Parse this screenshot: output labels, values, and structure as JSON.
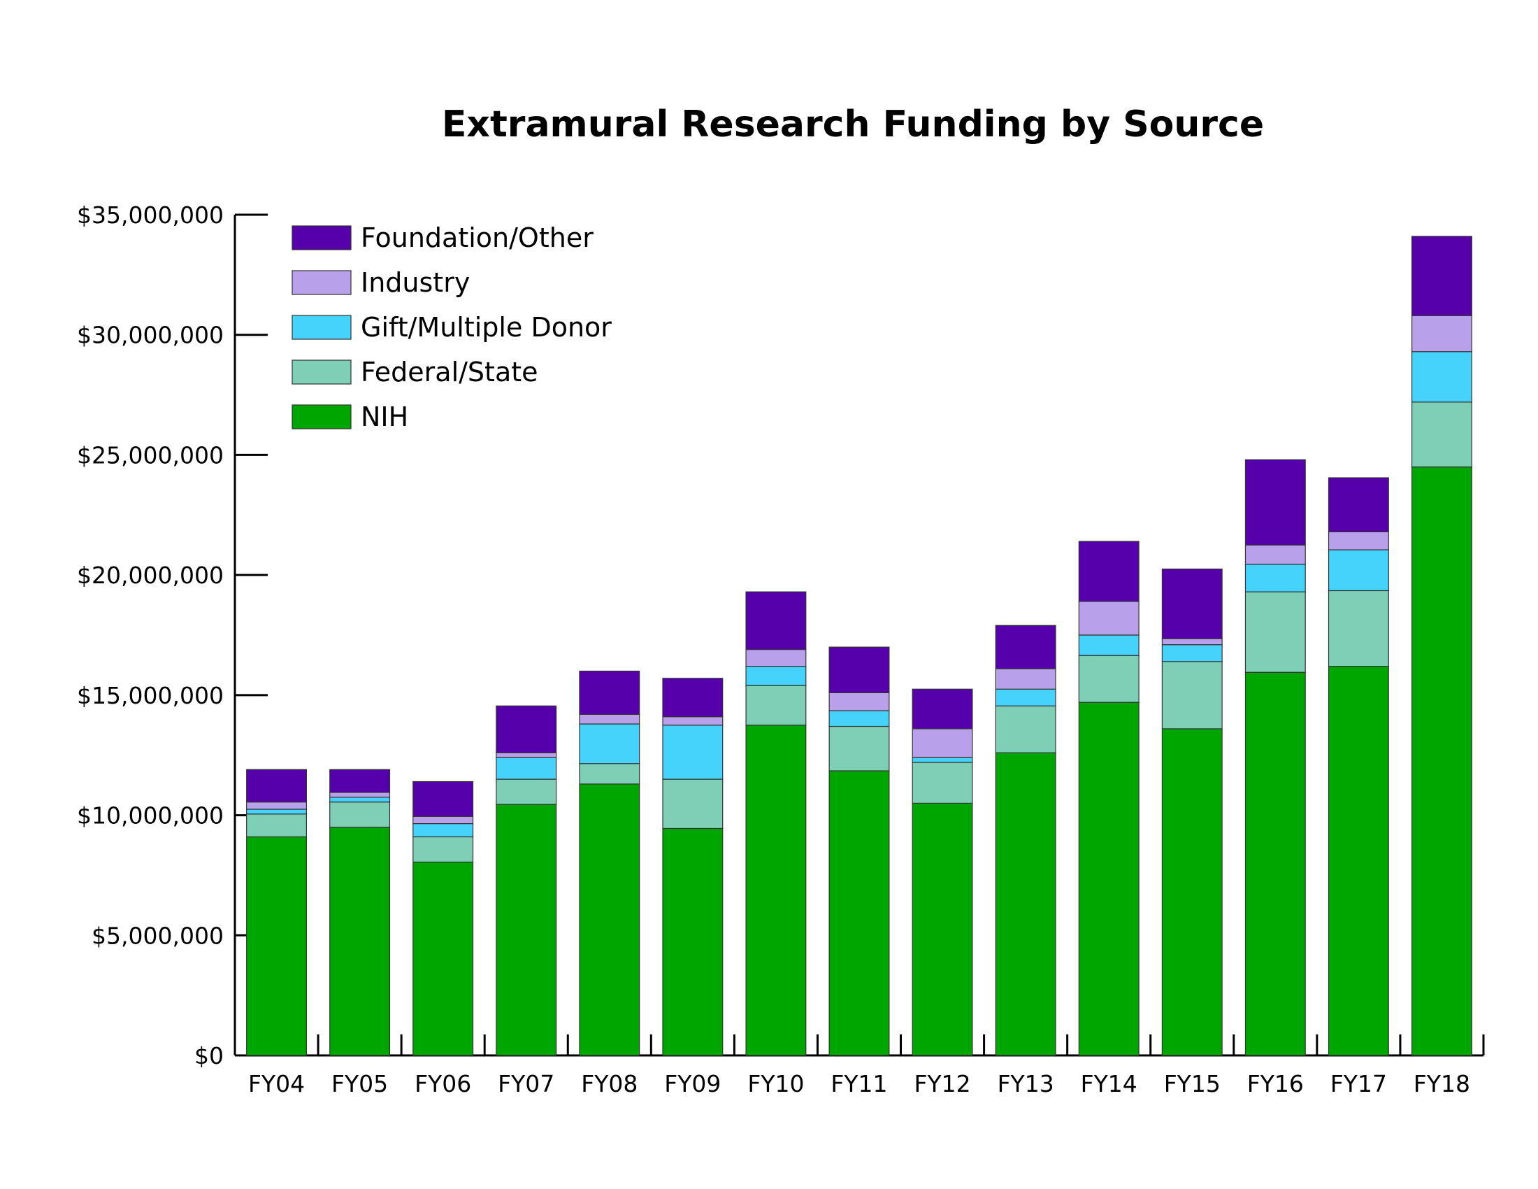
{
  "chart_data": {
    "type": "bar",
    "stacked": true,
    "title": "Extramural Research Funding by Source",
    "xlabel": "",
    "ylabel": "",
    "ylim": [
      0,
      35000000
    ],
    "yticks": [
      0,
      5000000,
      10000000,
      15000000,
      20000000,
      25000000,
      30000000,
      35000000
    ],
    "ytick_labels": [
      "$0",
      "$5,000,000",
      "$10,000,000",
      "$15,000,000",
      "$20,000,000",
      "$25,000,000",
      "$30,000,000",
      "$35,000,000"
    ],
    "categories": [
      "FY04",
      "FY05",
      "FY06",
      "FY07",
      "FY08",
      "FY09",
      "FY10",
      "FY11",
      "FY12",
      "FY13",
      "FY14",
      "FY15",
      "FY16",
      "FY17",
      "FY18"
    ],
    "legend_position": "top-left",
    "grid": false,
    "series": [
      {
        "name": "NIH",
        "color": "#00a600",
        "values": [
          9100000,
          9500000,
          8050000,
          10450000,
          11300000,
          9450000,
          13750000,
          11850000,
          10500000,
          12600000,
          14700000,
          13600000,
          15950000,
          16200000,
          24500000
        ]
      },
      {
        "name": "Federal/State",
        "color": "#7ecfb6",
        "values": [
          950000,
          1050000,
          1050000,
          1050000,
          850000,
          2050000,
          1650000,
          1850000,
          1700000,
          1950000,
          1950000,
          2800000,
          3350000,
          3150000,
          2700000
        ]
      },
      {
        "name": "Gift/Multiple Donor",
        "color": "#45d3fb",
        "values": [
          200000,
          200000,
          550000,
          900000,
          1650000,
          2250000,
          800000,
          650000,
          200000,
          700000,
          850000,
          700000,
          1150000,
          1700000,
          2100000
        ]
      },
      {
        "name": "Industry",
        "color": "#b8a1ea",
        "values": [
          300000,
          200000,
          300000,
          200000,
          400000,
          350000,
          700000,
          750000,
          1200000,
          850000,
          1400000,
          250000,
          800000,
          750000,
          1500000
        ]
      },
      {
        "name": "Foundation/Other",
        "color": "#5500aa",
        "values": [
          1350000,
          950000,
          1450000,
          1950000,
          1800000,
          1600000,
          2400000,
          1900000,
          1650000,
          1800000,
          2500000,
          2900000,
          3550000,
          2250000,
          3300000
        ]
      }
    ]
  }
}
